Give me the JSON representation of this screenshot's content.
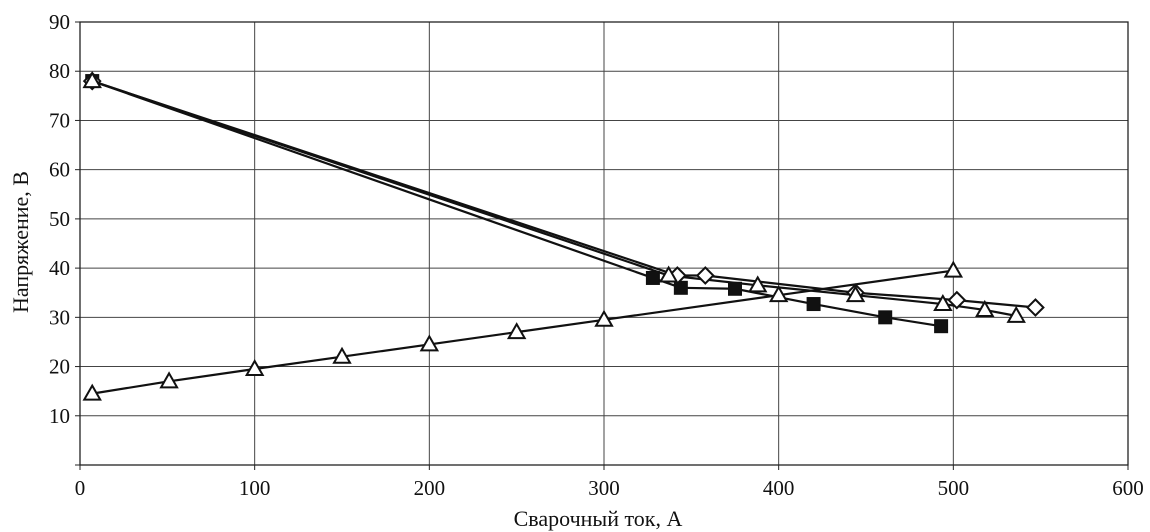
{
  "chart_data": {
    "type": "line",
    "title": "",
    "xlabel": "Сварочный ток, А",
    "ylabel": "Напряжение, В",
    "xlim": [
      0,
      600
    ],
    "ylim": [
      0,
      90
    ],
    "xticks": [
      0,
      100,
      200,
      300,
      400,
      500,
      600
    ],
    "yticks": [
      10,
      20,
      30,
      40,
      50,
      60,
      70,
      80,
      90
    ],
    "grid": true,
    "legend": "none",
    "series": [
      {
        "marker": "triangle",
        "points": [
          [
            7,
            14.5
          ],
          [
            51,
            17
          ],
          [
            100,
            19.5
          ],
          [
            150,
            22
          ],
          [
            200,
            24.5
          ],
          [
            250,
            27
          ],
          [
            300,
            29.5
          ],
          [
            400,
            34.5
          ],
          [
            500,
            39.5
          ]
        ]
      },
      {
        "marker": "square",
        "points": [
          [
            7,
            78
          ],
          [
            328,
            38
          ],
          [
            344,
            36
          ],
          [
            375,
            35.8
          ],
          [
            420,
            32.7
          ],
          [
            461,
            30
          ],
          [
            493,
            28.2
          ]
        ]
      },
      {
        "marker": "diamond",
        "points": [
          [
            7,
            78
          ],
          [
            342,
            38.5
          ],
          [
            358,
            38.5
          ],
          [
            444,
            35
          ],
          [
            502,
            33.5
          ],
          [
            547,
            32
          ]
        ]
      },
      {
        "marker": "triangle",
        "points": [
          [
            7,
            78
          ],
          [
            337,
            38.5
          ],
          [
            388,
            36.5
          ],
          [
            444,
            34.5
          ],
          [
            494,
            32.7
          ],
          [
            518,
            31.5
          ],
          [
            536,
            30.3
          ]
        ]
      }
    ]
  },
  "colors": {
    "line": "#111111",
    "grid": "#444444",
    "square_fill": "#111111",
    "open_fill": "#ffffff"
  }
}
